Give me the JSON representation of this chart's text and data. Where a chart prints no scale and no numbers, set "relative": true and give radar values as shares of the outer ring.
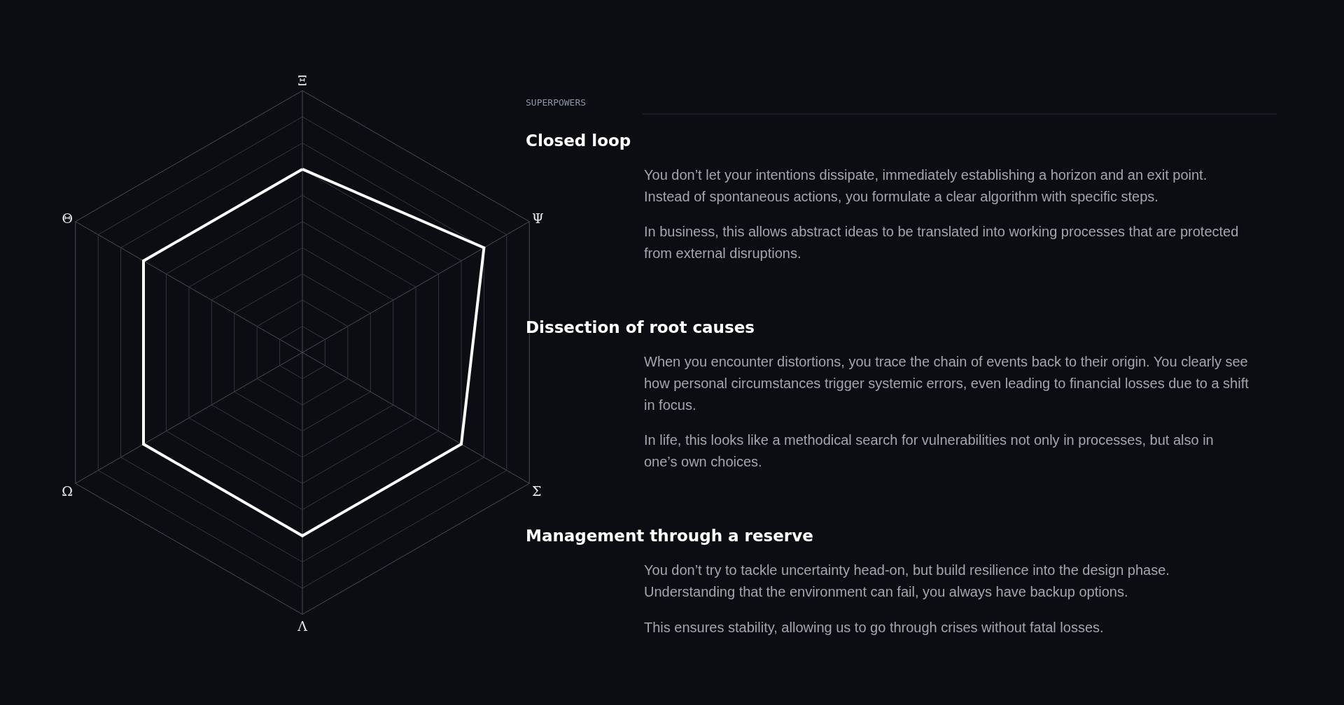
{
  "chart_data": [
    {
      "type": "radar",
      "relative": true,
      "categories": [
        "Ξ",
        "Ψ",
        "Σ",
        "Λ",
        "Ω",
        "Θ"
      ],
      "series": [
        {
          "color": "#ffffff",
          "values": [
            0.7,
            0.8,
            0.7,
            0.7,
            0.7,
            0.7
          ]
        }
      ]
    },
    {
      "type": "other",
      "title": "SUPERPOWERS"
    },
    {
      "type": "other",
      "title": "Closed loop",
      "annotations": [
        "You don’t let your intentions dissipate, immediately establishing a horizon and an exit point. Instead of spontaneous actions, you formulate a clear algorithm with specific steps.",
        "In business, this allows abstract ideas to be translated into working processes that are protected from external disruptions."
      ]
    },
    {
      "type": "other",
      "title": "Dissection of root causes",
      "annotations": [
        "When you encounter distortions, you trace the chain of events back to their origin. You clearly see how personal circumstances trigger systemic errors, even leading to financial losses due to a shift in focus.",
        "In life, this looks like a methodical search for vulnerabilities not only in processes, but also in one’s own choices."
      ]
    },
    {
      "type": "other",
      "title": "Management through a reserve",
      "annotations": [
        "You don’t try to tackle uncertainty head-on, but build resilience into the design phase. Understanding that the environment can fail, you always have backup options.",
        "This ensures stability, allowing us to go through crises without fatal losses."
      ]
    }
  ]
}
